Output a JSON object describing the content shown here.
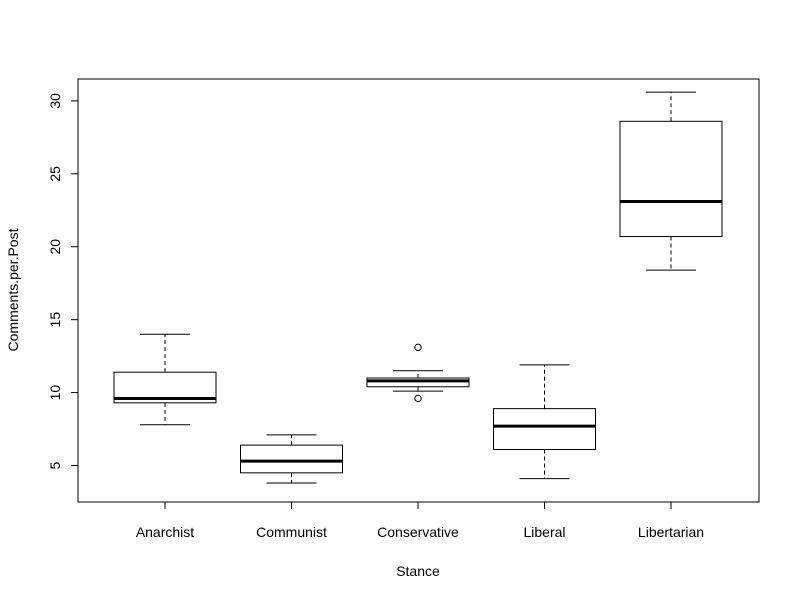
{
  "chart_data": {
    "type": "boxplot",
    "title": "",
    "xlabel": "Stance",
    "ylabel": "Comments.per.Post",
    "ylim": [
      2.5,
      31.5
    ],
    "yticks": [
      5,
      10,
      15,
      20,
      25,
      30
    ],
    "grid": false,
    "categories": [
      "Anarchist",
      "Communist",
      "Conservative",
      "Liberal",
      "Libertarian"
    ],
    "boxes": [
      {
        "category": "Anarchist",
        "whisker_low": 7.8,
        "q1": 9.3,
        "median": 9.6,
        "q3": 11.4,
        "whisker_high": 14.0,
        "outliers": []
      },
      {
        "category": "Communist",
        "whisker_low": 3.8,
        "q1": 4.5,
        "median": 5.3,
        "q3": 6.4,
        "whisker_high": 7.1,
        "outliers": []
      },
      {
        "category": "Conservative",
        "whisker_low": 10.1,
        "q1": 10.4,
        "median": 10.8,
        "q3": 11.0,
        "whisker_high": 11.5,
        "outliers": [
          13.1,
          9.6
        ]
      },
      {
        "category": "Liberal",
        "whisker_low": 4.1,
        "q1": 6.1,
        "median": 7.7,
        "q3": 8.9,
        "whisker_high": 11.9,
        "outliers": []
      },
      {
        "category": "Libertarian",
        "whisker_low": 18.4,
        "q1": 20.7,
        "median": 23.1,
        "q3": 28.6,
        "whisker_high": 30.6,
        "outliers": []
      }
    ]
  }
}
